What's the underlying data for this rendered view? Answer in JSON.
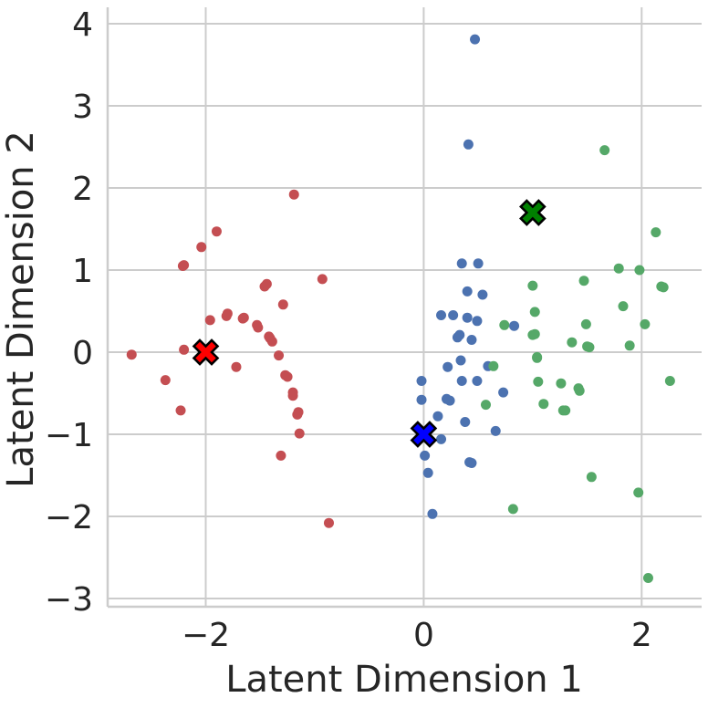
{
  "chart_data": {
    "type": "scatter",
    "xlabel": "Latent Dimension 1",
    "ylabel": "Latent Dimension 2",
    "xlim": [
      -2.9,
      2.55
    ],
    "ylim": [
      -3.1,
      4.2
    ],
    "xticks": [
      -2,
      0,
      2
    ],
    "xtick_labels": [
      "−2",
      "0",
      "2"
    ],
    "yticks": [
      -3,
      -2,
      -1,
      0,
      1,
      2,
      3,
      4
    ],
    "ytick_labels": [
      "−3",
      "−2",
      "−1",
      "0",
      "1",
      "2",
      "3",
      "4"
    ],
    "grid": true,
    "colors": {
      "red": "#c44e52",
      "blue": "#4c72b0",
      "green": "#55a868",
      "grid": "#cccccc",
      "text": "#262626"
    },
    "series": [
      {
        "color": "#c44e52",
        "points": [
          [
            -2.68,
            -0.03
          ],
          [
            -2.37,
            -0.34
          ],
          [
            -2.23,
            -0.71
          ],
          [
            -2.2,
            0.03
          ],
          [
            -2.21,
            1.05
          ],
          [
            -2.2,
            1.06
          ],
          [
            -2.04,
            1.28
          ],
          [
            -1.96,
            0.39
          ],
          [
            -1.9,
            1.47
          ],
          [
            -1.81,
            0.44
          ],
          [
            -1.8,
            0.47
          ],
          [
            -1.72,
            -0.18
          ],
          [
            -1.66,
            0.41
          ],
          [
            -1.65,
            0.42
          ],
          [
            -1.53,
            0.33
          ],
          [
            -1.52,
            0.3
          ],
          [
            -1.46,
            0.8
          ],
          [
            -1.44,
            0.83
          ],
          [
            -1.42,
            0.19
          ],
          [
            -1.41,
            0.17
          ],
          [
            -1.39,
            0.13
          ],
          [
            -1.33,
            -0.04
          ],
          [
            -1.29,
            0.58
          ],
          [
            -1.27,
            -0.28
          ],
          [
            -1.25,
            -0.3
          ],
          [
            -1.19,
            1.92
          ],
          [
            -1.2,
            -0.49
          ],
          [
            -1.2,
            -0.53
          ],
          [
            -1.16,
            -0.76
          ],
          [
            -1.15,
            -0.73
          ],
          [
            -1.14,
            -0.99
          ],
          [
            -1.31,
            -1.26
          ],
          [
            -0.93,
            0.89
          ],
          [
            -0.87,
            -2.08
          ]
        ]
      },
      {
        "color": "#4c72b0",
        "points": [
          [
            0.47,
            3.81
          ],
          [
            0.41,
            2.53
          ],
          [
            0.35,
            1.08
          ],
          [
            0.5,
            1.08
          ],
          [
            0.4,
            0.74
          ],
          [
            0.54,
            0.7
          ],
          [
            0.16,
            0.45
          ],
          [
            0.27,
            0.45
          ],
          [
            0.4,
            0.42
          ],
          [
            0.49,
            0.38
          ],
          [
            0.83,
            0.32
          ],
          [
            0.33,
            0.21
          ],
          [
            0.31,
            0.18
          ],
          [
            0.44,
            0.15
          ],
          [
            0.34,
            -0.1
          ],
          [
            0.22,
            -0.18
          ],
          [
            -0.02,
            -0.35
          ],
          [
            0.35,
            -0.35
          ],
          [
            0.49,
            -0.35
          ],
          [
            0.59,
            -0.17
          ],
          [
            0.73,
            -0.49
          ],
          [
            -0.02,
            -0.58
          ],
          [
            0.21,
            -0.57
          ],
          [
            0.24,
            -0.59
          ],
          [
            0.13,
            -0.78
          ],
          [
            0.38,
            -0.85
          ],
          [
            0.66,
            -0.96
          ],
          [
            0.16,
            -1.06
          ],
          [
            0.01,
            -1.26
          ],
          [
            0.42,
            -1.34
          ],
          [
            0.44,
            -1.35
          ],
          [
            0.04,
            -1.47
          ],
          [
            0.08,
            -1.97
          ]
        ]
      },
      {
        "color": "#55a868",
        "points": [
          [
            1.66,
            2.46
          ],
          [
            2.13,
            1.46
          ],
          [
            1.79,
            1.02
          ],
          [
            1.98,
            1.0
          ],
          [
            1.47,
            0.87
          ],
          [
            1.0,
            0.81
          ],
          [
            1.83,
            0.56
          ],
          [
            2.18,
            0.8
          ],
          [
            2.2,
            0.79
          ],
          [
            1.02,
            0.49
          ],
          [
            0.74,
            0.33
          ],
          [
            1.49,
            0.34
          ],
          [
            2.03,
            0.34
          ],
          [
            1.0,
            0.21
          ],
          [
            1.02,
            0.22
          ],
          [
            1.36,
            0.12
          ],
          [
            1.5,
            0.07
          ],
          [
            1.52,
            0.06
          ],
          [
            1.89,
            0.08
          ],
          [
            1.04,
            -0.06
          ],
          [
            1.04,
            -0.07
          ],
          [
            0.64,
            -0.17
          ],
          [
            1.05,
            -0.36
          ],
          [
            1.26,
            -0.38
          ],
          [
            1.42,
            -0.44
          ],
          [
            1.43,
            -0.47
          ],
          [
            2.26,
            -0.35
          ],
          [
            0.57,
            -0.64
          ],
          [
            1.1,
            -0.63
          ],
          [
            1.28,
            -0.71
          ],
          [
            1.3,
            -0.71
          ],
          [
            1.54,
            -1.52
          ],
          [
            1.97,
            -1.71
          ],
          [
            0.82,
            -1.91
          ],
          [
            2.06,
            -2.75
          ]
        ]
      }
    ],
    "centroids": [
      {
        "x": -2,
        "y": 0,
        "color": "#ff0000"
      },
      {
        "x": 0,
        "y": -1,
        "color": "#0000ff"
      },
      {
        "x": 1,
        "y": 1.7,
        "color": "#008000"
      }
    ]
  }
}
